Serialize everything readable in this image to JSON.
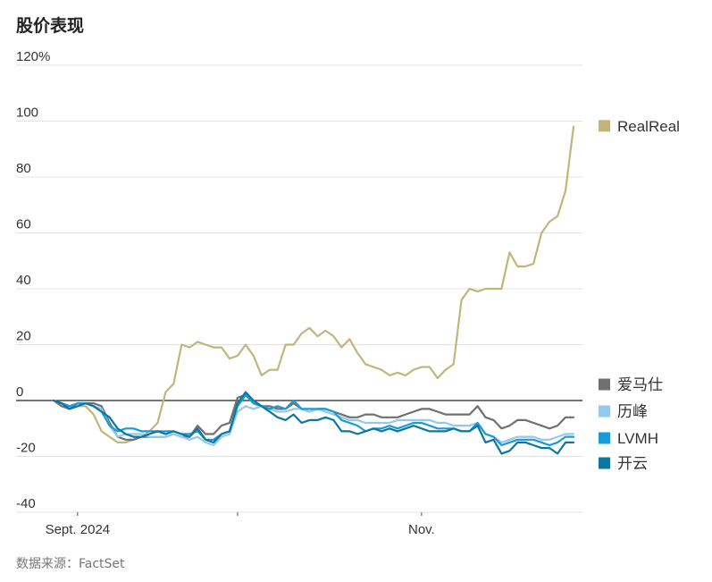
{
  "title": "股价表现",
  "source": "数据来源：FactSet",
  "chart_data": {
    "type": "line",
    "ylim": [
      -40,
      120
    ],
    "y_ticks": [
      -40,
      -20,
      0,
      20,
      40,
      60,
      80,
      100,
      120
    ],
    "y_tick_labels": [
      "-40",
      "-20",
      "0",
      "20",
      "40",
      "60",
      "80",
      "100",
      "120%"
    ],
    "x_ticks": [
      {
        "label": "Sept. 2024",
        "date": "2024-09-03",
        "index": 3
      },
      {
        "label": "",
        "date": "2024-10-01",
        "index": 23
      },
      {
        "label": "Nov.",
        "date": "2024-11-01",
        "index": 46
      }
    ],
    "series": [
      {
        "name": "RealReal",
        "color": "#c0b67c",
        "values": [
          0,
          -1,
          -3,
          -2,
          -2,
          -5,
          -11,
          -13,
          -15,
          -15,
          -14,
          -13,
          -11,
          -8,
          3,
          6,
          20,
          19,
          21,
          20,
          19,
          19,
          15,
          16,
          20,
          16,
          9,
          11,
          11,
          20,
          20,
          24,
          26,
          23,
          25,
          23,
          19,
          22,
          17,
          13,
          12,
          11,
          9,
          10,
          9,
          11,
          12,
          12,
          8,
          11,
          13,
          36,
          40,
          39,
          40,
          40,
          40,
          53,
          48,
          48,
          49,
          60,
          64,
          66,
          75,
          98
        ]
      },
      {
        "name": "爱马仕",
        "color": "#707070",
        "values": [
          0,
          -2,
          -3,
          -1,
          -1,
          -1,
          -2,
          -8,
          -13,
          -14,
          -14,
          -13,
          -13,
          -13,
          -13,
          -12,
          -13,
          -13,
          -9,
          -12,
          -12,
          -9,
          -8,
          1,
          2,
          -1,
          -2,
          -2,
          -3,
          -3,
          -1,
          -3,
          -4,
          -3,
          -3,
          -4,
          -5,
          -6,
          -6,
          -5,
          -5,
          -6,
          -6,
          -6,
          -5,
          -4,
          -3,
          -3,
          -4,
          -5,
          -5,
          -5,
          -5,
          -2,
          -6,
          -7,
          -10,
          -9,
          -7,
          -7,
          -8,
          -9,
          -10,
          -9,
          -6,
          -6
        ]
      },
      {
        "name": "历峰",
        "color": "#93c9ea",
        "values": [
          0,
          -1,
          -2,
          -1,
          -1,
          -2,
          -3,
          -9,
          -13,
          -12,
          -12,
          -12,
          -13,
          -13,
          -13,
          -12,
          -13,
          -14,
          -13,
          -15,
          -16,
          -13,
          -12,
          -4,
          -2,
          -3,
          -2,
          -3,
          -4,
          -4,
          -3,
          -3,
          -4,
          -3,
          -4,
          -5,
          -6,
          -7,
          -7,
          -8,
          -8,
          -8,
          -8,
          -7,
          -7,
          -7,
          -7,
          -7,
          -8,
          -8,
          -9,
          -9,
          -9,
          -8,
          -12,
          -13,
          -15,
          -14,
          -13,
          -13,
          -13,
          -14,
          -14,
          -13,
          -12,
          -12
        ]
      },
      {
        "name": "LVMH",
        "color": "#1a9ad8",
        "values": [
          0,
          -1,
          -2,
          -1,
          -1,
          -2,
          -4,
          -9,
          -11,
          -10,
          -10,
          -11,
          -11,
          -11,
          -11,
          -11,
          -12,
          -12,
          -11,
          -14,
          -14,
          -12,
          -11,
          -2,
          2,
          -1,
          -2,
          -3,
          -2,
          -3,
          0,
          -3,
          -3,
          -3,
          -3,
          -4,
          -7,
          -8,
          -9,
          -11,
          -10,
          -10,
          -9,
          -10,
          -9,
          -8,
          -8,
          -9,
          -10,
          -10,
          -10,
          -11,
          -11,
          -8,
          -12,
          -13,
          -16,
          -15,
          -14,
          -14,
          -14,
          -15,
          -16,
          -15,
          -13,
          -13
        ]
      },
      {
        "name": "开云",
        "color": "#0d76a3",
        "values": [
          0,
          -1,
          -3,
          -2,
          -1,
          -2,
          -4,
          -6,
          -10,
          -12,
          -13,
          -13,
          -12,
          -11,
          -12,
          -11,
          -12,
          -13,
          -10,
          -14,
          -15,
          -12,
          -11,
          -1,
          3,
          0,
          -2,
          -4,
          -6,
          -7,
          -5,
          -8,
          -7,
          -7,
          -6,
          -7,
          -11,
          -11,
          -12,
          -11,
          -10,
          -11,
          -10,
          -11,
          -10,
          -9,
          -10,
          -11,
          -11,
          -11,
          -10,
          -11,
          -11,
          -9,
          -15,
          -14,
          -19,
          -18,
          -15,
          -15,
          -16,
          -17,
          -17,
          -19,
          -15,
          -15
        ]
      }
    ]
  }
}
